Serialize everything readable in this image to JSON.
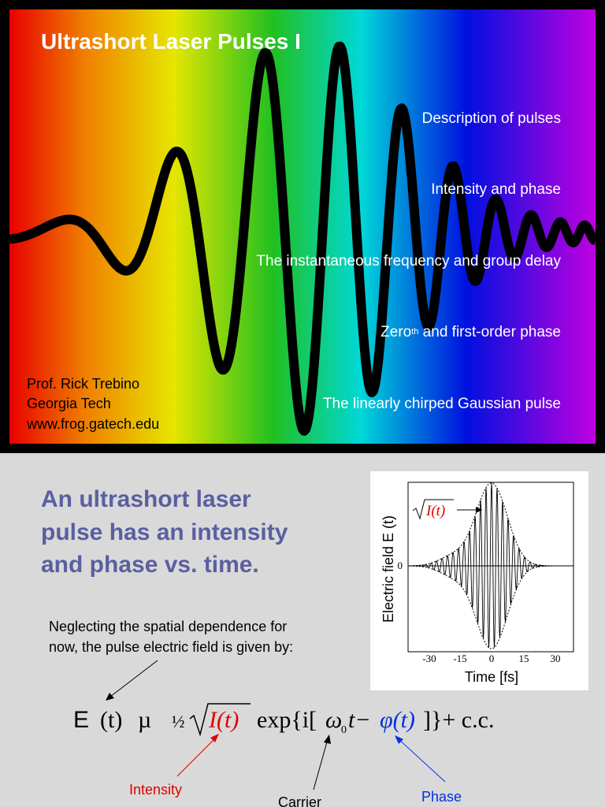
{
  "slide1": {
    "title": "Ultrashort Laser Pulses I",
    "topics": [
      "Description of pulses",
      "Intensity and phase",
      "The instantaneous frequency and group delay",
      {
        "pre": "Zero",
        "sup": "th",
        "post": " and first-order phase"
      },
      "The linearly chirped Gaussian pulse"
    ],
    "author": [
      "Prof. Rick Trebino",
      "Georgia Tech",
      "www.frog.gatech.edu"
    ]
  },
  "slide2": {
    "heading": [
      "An ultrashort laser",
      "pulse has an intensity",
      "and phase vs. time."
    ],
    "text": [
      "Neglecting the spatial dependence for",
      "now, the pulse electric field is given by:"
    ],
    "figure": {
      "y_label": "Electric field E  (t)",
      "x_label": "Time [fs]",
      "xticks": [
        "-30",
        "-15",
        "0",
        "15",
        "30"
      ],
      "ytick": "0",
      "annotation": "I(t)"
    },
    "equation": {
      "e": "E",
      "t": "(t)",
      "prop": "µ",
      "half": "½",
      "intensity": "I(t)",
      "exp": "exp{i[",
      "omega": "ω",
      "sub": "0",
      "carrier": "t−",
      "phase": "φ(t)",
      "end": "]}+ c.c."
    },
    "labels": {
      "intensity": "Intensity",
      "carrier": "Carrier",
      "phase": "Phase"
    }
  }
}
